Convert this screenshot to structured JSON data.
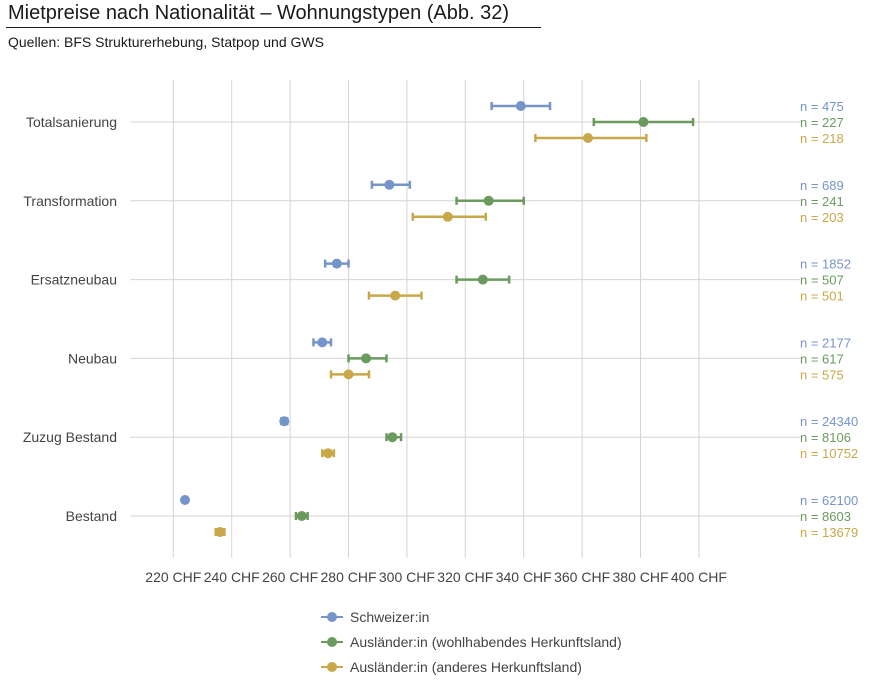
{
  "header": {
    "title": "Mietpreise nach Nationalität – Wohnungstypen  (Abb. 32)",
    "subtitle": "Quellen: BFS Strukturerhebung, Statpop und GWS"
  },
  "chart_data": {
    "type": "scatter",
    "subtype": "dot-with-error-bars",
    "title": "Mietpreise nach Nationalität – Wohnungstypen  (Abb. 32)",
    "subtitle": "Quellen: BFS Strukturerhebung, Statpop und GWS",
    "categories": [
      "Totalsanierung",
      "Transformation",
      "Ersatzneubau",
      "Neubau",
      "Zuzug Bestand",
      "Bestand"
    ],
    "x_ticks": [
      220,
      240,
      260,
      280,
      300,
      320,
      340,
      360,
      380,
      400
    ],
    "x_tick_suffix": " CHF",
    "xlim": [
      210,
      403
    ],
    "grid": true,
    "legend_position": "bottom",
    "n_prefix": "n = ",
    "series": [
      {
        "name": "Schweizer:in",
        "color": "#7594c9",
        "values": [
          339,
          294,
          276,
          271,
          258,
          224
        ],
        "lower": [
          329,
          288,
          272,
          268,
          257,
          223.5
        ],
        "upper": [
          349,
          301,
          280,
          274,
          259,
          224.5
        ],
        "n": [
          "475",
          "689",
          "1852",
          "2177",
          "24340",
          "62100"
        ]
      },
      {
        "name": "Ausländer:in (wohlhabendes Herkunftsland)",
        "color": "#6a9a5e",
        "values": [
          381,
          328,
          326,
          286,
          295,
          264
        ],
        "lower": [
          364,
          317,
          317,
          280,
          293,
          262
        ],
        "upper": [
          398,
          340,
          335,
          293,
          298,
          266
        ],
        "n": [
          "227",
          "241",
          "507",
          "617",
          "8106",
          "8603"
        ]
      },
      {
        "name": "Ausländer:in (anderes Herkunftsland)",
        "color": "#c9a84a",
        "values": [
          362,
          314,
          296,
          280,
          273,
          236
        ],
        "lower": [
          344,
          302,
          287,
          274,
          271,
          234.5
        ],
        "upper": [
          382,
          327,
          305,
          287,
          275,
          237.5
        ],
        "n": [
          "218",
          "203",
          "501",
          "575",
          "10752",
          "13679"
        ]
      }
    ]
  }
}
